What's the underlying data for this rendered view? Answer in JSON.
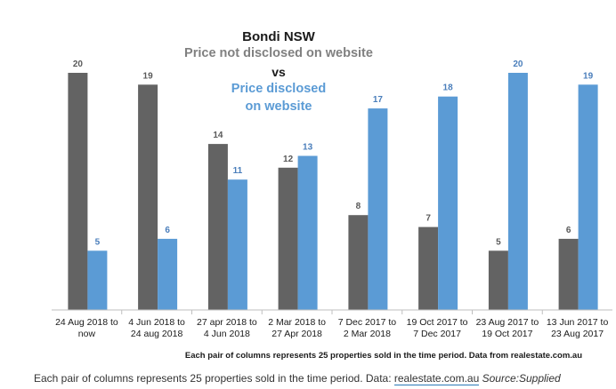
{
  "chart_data": {
    "type": "bar",
    "title": "Bondi NSW",
    "legend_text": {
      "series1": "Price not disclosed on website",
      "vs": "vs",
      "series2_line1": "Price disclosed",
      "series2_line2": "on website"
    },
    "categories": [
      [
        "24 Aug 2018 to",
        "now"
      ],
      [
        "4 Jun 2018 to",
        "24 aug 2018"
      ],
      [
        "27 apr 2018 to",
        "4 Jun 2018"
      ],
      [
        "2 Mar 2018 to",
        "27 Apr 2018"
      ],
      [
        "7 Dec 2017 to",
        "2 Mar 2018"
      ],
      [
        "19 Oct 2017 to",
        "7 Dec 2017"
      ],
      [
        "23 Aug 2017 to",
        "19 Oct 2017"
      ],
      [
        "13 Jun 2017 to",
        "23 Aug 2017"
      ]
    ],
    "series": [
      {
        "name": "Price not disclosed on website",
        "color": "#636363",
        "label_color": "#595959",
        "values": [
          20,
          19,
          14,
          12,
          8,
          7,
          5,
          6
        ]
      },
      {
        "name": "Price disclosed on website",
        "color": "#5b9bd5",
        "label_color": "#4a7ebb",
        "values": [
          5,
          6,
          11,
          13,
          17,
          18,
          20,
          19
        ]
      }
    ],
    "ylim": [
      0,
      20
    ],
    "grid": false,
    "legend_placement": "top-left",
    "footnote": "Each pair of columns represents 25 properties sold in the time period. Data from realestate.com.au"
  },
  "caption": {
    "text": "Each pair of columns represents 25 properties sold in the time period. Data:",
    "link": "realestate.com.au",
    "source": "Source:Supplied"
  }
}
